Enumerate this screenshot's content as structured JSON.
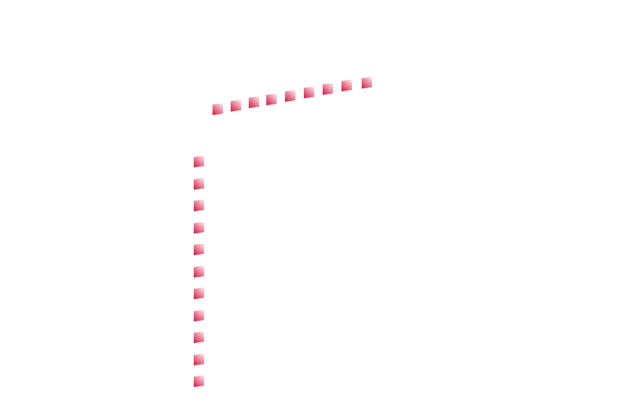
{
  "tiles": {
    "color_dark": "#d7143c",
    "color_light": "#fdf2f4",
    "top_row_count": 9,
    "left_column_count": 11
  }
}
